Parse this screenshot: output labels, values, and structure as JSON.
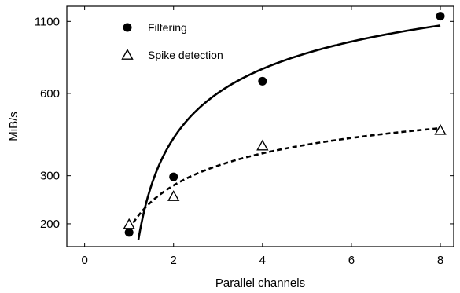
{
  "chart_data": {
    "type": "scatter",
    "title": "",
    "xlabel": "Parallel channels",
    "ylabel": "MiB/s",
    "xlim": [
      -0.4,
      8.3
    ],
    "ylim": [
      165,
      1250
    ],
    "yscale": "log",
    "x_ticks": [
      0,
      2,
      4,
      6,
      8
    ],
    "x_tick_labels": [
      "0",
      "2",
      "4",
      "6",
      "8"
    ],
    "y_ticks": [
      200,
      300,
      600,
      1100
    ],
    "y_tick_labels": [
      "200",
      "300",
      "600",
      "1100"
    ],
    "grid": false,
    "legend_position": "top-left",
    "series": [
      {
        "name": "Filtering",
        "marker": "filled-circle",
        "line": "solid",
        "color": "#000000",
        "points": [
          {
            "x": 1,
            "y": 186
          },
          {
            "x": 2,
            "y": 297
          },
          {
            "x": 4,
            "y": 665
          },
          {
            "x": 8,
            "y": 1150
          }
        ]
      },
      {
        "name": "Spike detection",
        "marker": "open-triangle",
        "line": "dashed",
        "color": "#000000",
        "points": [
          {
            "x": 1,
            "y": 199
          },
          {
            "x": 2,
            "y": 252
          },
          {
            "x": 4,
            "y": 386
          },
          {
            "x": 8,
            "y": 440
          }
        ]
      }
    ]
  }
}
